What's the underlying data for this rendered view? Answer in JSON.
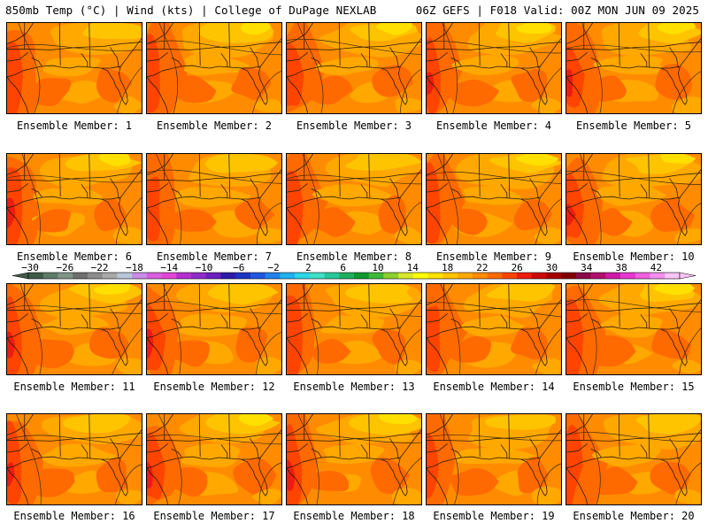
{
  "header": {
    "left": "850mb Temp (°C) | Wind (kts) | College of DuPage NEXLAB",
    "right": "06Z GEFS | F018 Valid: 00Z MON JUN 09 2025"
  },
  "panels": [
    {
      "label": "Ensemble Member: 1",
      "member": 1
    },
    {
      "label": "Ensemble Member: 2",
      "member": 2
    },
    {
      "label": "Ensemble Member: 3",
      "member": 3
    },
    {
      "label": "Ensemble Member: 4",
      "member": 4
    },
    {
      "label": "Ensemble Member: 5",
      "member": 5
    },
    {
      "label": "Ensemble Member: 6",
      "member": 6
    },
    {
      "label": "Ensemble Member: 7",
      "member": 7
    },
    {
      "label": "Ensemble Member: 8",
      "member": 8
    },
    {
      "label": "Ensemble Member: 9",
      "member": 9
    },
    {
      "label": "Ensemble Member: 10",
      "member": 10
    },
    {
      "label": "Ensemble Member: 11",
      "member": 11
    },
    {
      "label": "Ensemble Member: 12",
      "member": 12
    },
    {
      "label": "Ensemble Member: 13",
      "member": 13
    },
    {
      "label": "Ensemble Member: 14",
      "member": 14
    },
    {
      "label": "Ensemble Member: 15",
      "member": 15
    },
    {
      "label": "Ensemble Member: 16",
      "member": 16
    },
    {
      "label": "Ensemble Member: 17",
      "member": 17
    },
    {
      "label": "Ensemble Member: 18",
      "member": 18
    },
    {
      "label": "Ensemble Member: 19",
      "member": 19
    },
    {
      "label": "Ensemble Member: 20",
      "member": 20
    }
  ],
  "colorbar": {
    "labels": [
      "−30",
      "−26",
      "−22",
      "−18",
      "−14",
      "−10",
      "−6",
      "−2",
      "2",
      "6",
      "10",
      "14",
      "18",
      "22",
      "26",
      "30",
      "34",
      "38",
      "42"
    ],
    "colors": [
      "#3f5a48",
      "#5e7a68",
      "#7f9487",
      "#6f6f6f",
      "#8d8d8d",
      "#a8a8a8",
      "#b9c6d9",
      "#c78de6",
      "#d95fe0",
      "#e245d6",
      "#b52fd0",
      "#8e2cc9",
      "#6a1fbf",
      "#2c1ba8",
      "#1c34c4",
      "#1e56e0",
      "#2181ea",
      "#1fb0f0",
      "#2ad6e8",
      "#3fe0c6",
      "#27c99a",
      "#1faf5f",
      "#0f9a2f",
      "#3fb83a",
      "#8fcf2d",
      "#d8e82a",
      "#ffff00",
      "#ffe000",
      "#ffc400",
      "#ffa800",
      "#ff8c00",
      "#ff6a00",
      "#ff4400",
      "#ee1c10",
      "#cc0a0a",
      "#a60000",
      "#800000",
      "#8a0a4a",
      "#b0106e",
      "#d01aa8",
      "#e837d0",
      "#f060e0",
      "#f58ef0",
      "#f9c4f6"
    ],
    "left_arrow_color": "#3f5a48",
    "right_arrow_color": "#f9c4f6"
  },
  "map_colors": {
    "t14": "#ffe000",
    "t16": "#ffc400",
    "t18": "#ffa800",
    "t20": "#ff8c00",
    "t22": "#ff6a00",
    "t24": "#ff4400",
    "t26": "#ee1c10"
  }
}
